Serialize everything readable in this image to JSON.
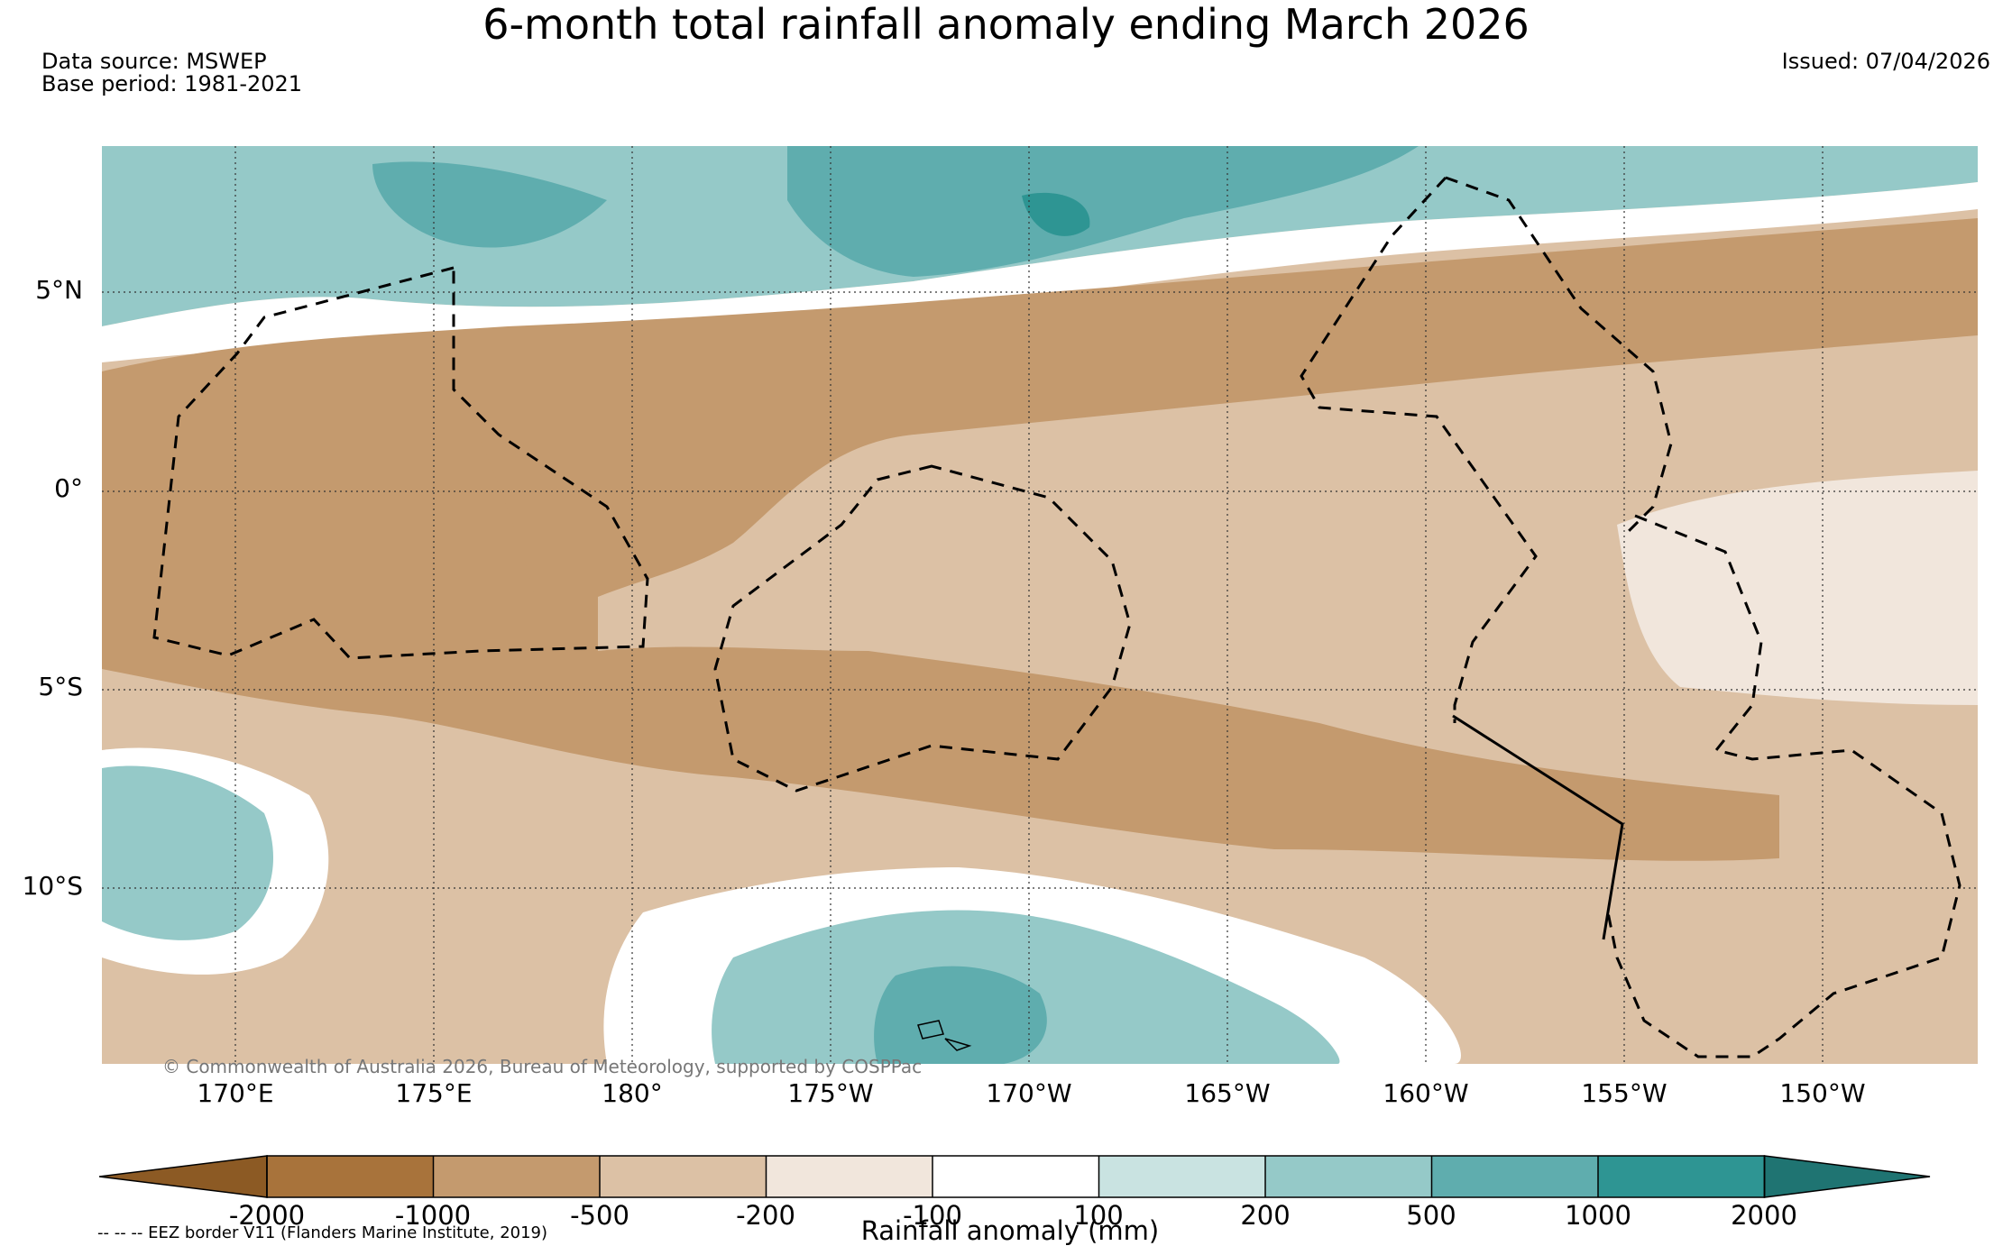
{
  "title": "6-month total rainfall anomaly ending March 2026",
  "data_source": "Data source: MSWEP",
  "base_period": "Base period: 1981-2021",
  "issued": "Issued: 07/04/2026",
  "copyright": "© Commonwealth of Australia 2026, Bureau of Meteorology, supported by COSPPac",
  "eez_note": "-- -- -- EEZ border V11 (Flanders Marine Institute, 2019)",
  "lat_labels": [
    "5°N",
    "0°",
    "5°S",
    "10°S"
  ],
  "lon_labels": [
    "170°E",
    "175°E",
    "180°",
    "175°W",
    "170°W",
    "165°W",
    "160°W",
    "155°W",
    "150°W"
  ],
  "colorbar": {
    "title": "Rainfall anomaly (mm)",
    "ticks": [
      "-2000",
      "-1000",
      "-500",
      "-200",
      "-100",
      "100",
      "200",
      "500",
      "1000",
      "2000"
    ],
    "colors": [
      "#8c5a24",
      "#a8733b",
      "#c49a6e",
      "#dcc1a5",
      "#f1e6dc",
      "#ffffff",
      "#c9e3e1",
      "#95c9c8",
      "#5fadae",
      "#2e9593",
      "#1f7472"
    ]
  }
}
